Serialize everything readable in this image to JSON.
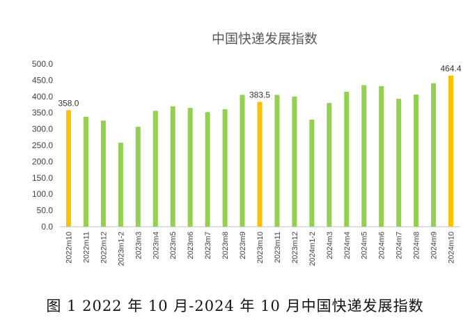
{
  "caption": "图 1 2022 年 10 月-2024 年 10 月中国快递发展指数",
  "chart_data": {
    "type": "bar",
    "title": "中国快递发展指数",
    "xlabel": "",
    "ylabel": "",
    "ylim": [
      0,
      500
    ],
    "yticks": [
      "0.0",
      "50.0",
      "100.0",
      "150.0",
      "200.0",
      "250.0",
      "300.0",
      "350.0",
      "400.0",
      "450.0",
      "500.0"
    ],
    "grid": false,
    "legend": "none",
    "categories": [
      "2022m10",
      "2022m11",
      "2022m12",
      "2023m1-2",
      "2023m3",
      "2023m4",
      "2023m5",
      "2023m6",
      "2023m7",
      "2023m8",
      "2023m9",
      "2023m10",
      "2023m11",
      "2023m12",
      "2024m1-2",
      "2024m3",
      "2024m4",
      "2024m5",
      "2024m6",
      "2024m7",
      "2024m8",
      "2024m9",
      "2024m10"
    ],
    "values": [
      358.0,
      338,
      326,
      258,
      307,
      356,
      370,
      365,
      352,
      361,
      405,
      383.5,
      405,
      400,
      329,
      380,
      415,
      435,
      432,
      393,
      406,
      441,
      464.4
    ],
    "highlighted": [
      "2022m10",
      "2023m10",
      "2024m10"
    ],
    "data_labels": [
      {
        "category": "2022m10",
        "text": "358.0"
      },
      {
        "category": "2023m10",
        "text": "383.5"
      },
      {
        "category": "2024m10",
        "text": "464.4"
      }
    ],
    "colors": {
      "normal": "#92D050",
      "highlight": "#FFC000",
      "axis": "#BFBFBF"
    }
  }
}
